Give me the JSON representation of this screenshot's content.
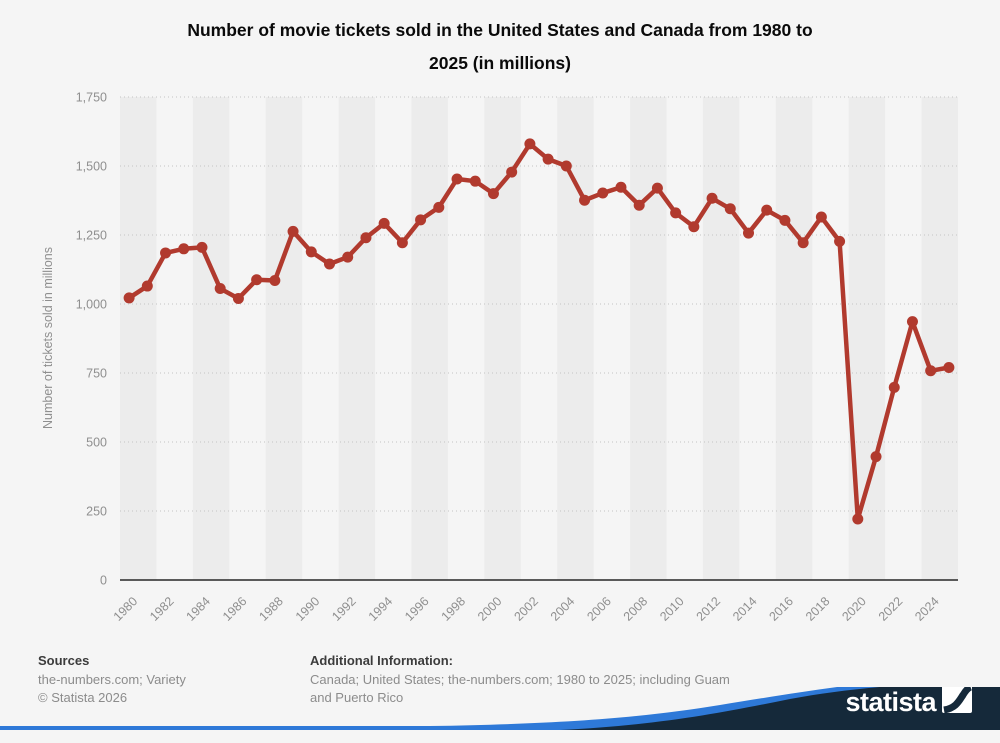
{
  "title": {
    "line1": "Number of movie tickets sold in the United States and Canada from 1980 to",
    "line2": "2025 (in millions)"
  },
  "chart_data": {
    "type": "line",
    "title": "Number of movie tickets sold in the United States and Canada from 1980 to 2025 (in millions)",
    "xlabel": "",
    "ylabel": "Number of tickets sold in millions",
    "ylim": [
      0,
      1750
    ],
    "yticks": [
      0,
      250,
      500,
      750,
      1000,
      1250,
      1500,
      1750
    ],
    "xtick_step": 2,
    "grid": "horizontal-dotted",
    "legend": "none",
    "line_color": "#b13a2e",
    "marker": "circle",
    "x": [
      1980,
      1981,
      1982,
      1983,
      1984,
      1985,
      1986,
      1987,
      1988,
      1989,
      1990,
      1991,
      1992,
      1993,
      1994,
      1995,
      1996,
      1997,
      1998,
      1999,
      2000,
      2001,
      2002,
      2003,
      2004,
      2005,
      2006,
      2007,
      2008,
      2009,
      2010,
      2011,
      2012,
      2013,
      2014,
      2015,
      2016,
      2017,
      2018,
      2019,
      2020,
      2021,
      2022,
      2023,
      2024,
      2025
    ],
    "values": [
      1022,
      1065,
      1185,
      1200,
      1205,
      1056,
      1020,
      1088,
      1085,
      1263,
      1189,
      1145,
      1170,
      1240,
      1292,
      1222,
      1305,
      1350,
      1453,
      1445,
      1400,
      1478,
      1580,
      1525,
      1500,
      1376,
      1402,
      1423,
      1358,
      1420,
      1330,
      1280,
      1383,
      1345,
      1257,
      1340,
      1303,
      1222,
      1315,
      1227,
      221,
      447,
      698,
      936,
      758,
      770
    ]
  },
  "footer": {
    "sources_heading": "Sources",
    "sources_line1": "the-numbers.com; Variety",
    "sources_line2": "© Statista 2026",
    "additional_heading": "Additional Information:",
    "additional_line1": "Canada; United States; the-numbers.com; 1980 to 2025; including Guam",
    "additional_line2": "and Puerto Rico"
  },
  "branding": {
    "wordmark": "statista",
    "navy": "#15293a",
    "blue": "#2e79d8"
  }
}
